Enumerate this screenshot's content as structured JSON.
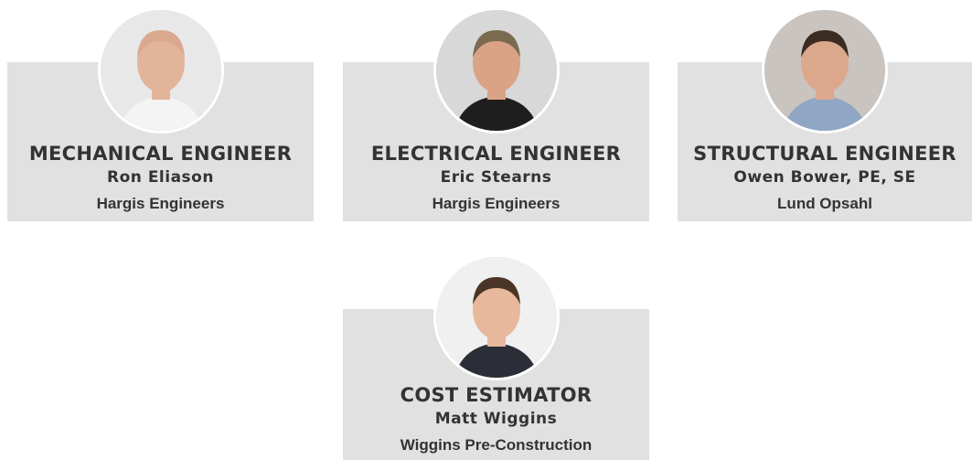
{
  "cards": [
    {
      "role": "MECHANICAL ENGINEER",
      "name": "Ron Eliason",
      "company": "Hargis Engineers"
    },
    {
      "role": "ELECTRICAL ENGINEER",
      "name": "Eric Stearns",
      "company": "Hargis Engineers"
    },
    {
      "role": "STRUCTURAL ENGINEER",
      "name": "Owen Bower, PE, SE",
      "company": "Lund Opsahl"
    },
    {
      "role": "COST ESTIMATOR",
      "name": "Matt Wiggins",
      "company": "Wiggins Pre-Construction"
    }
  ]
}
